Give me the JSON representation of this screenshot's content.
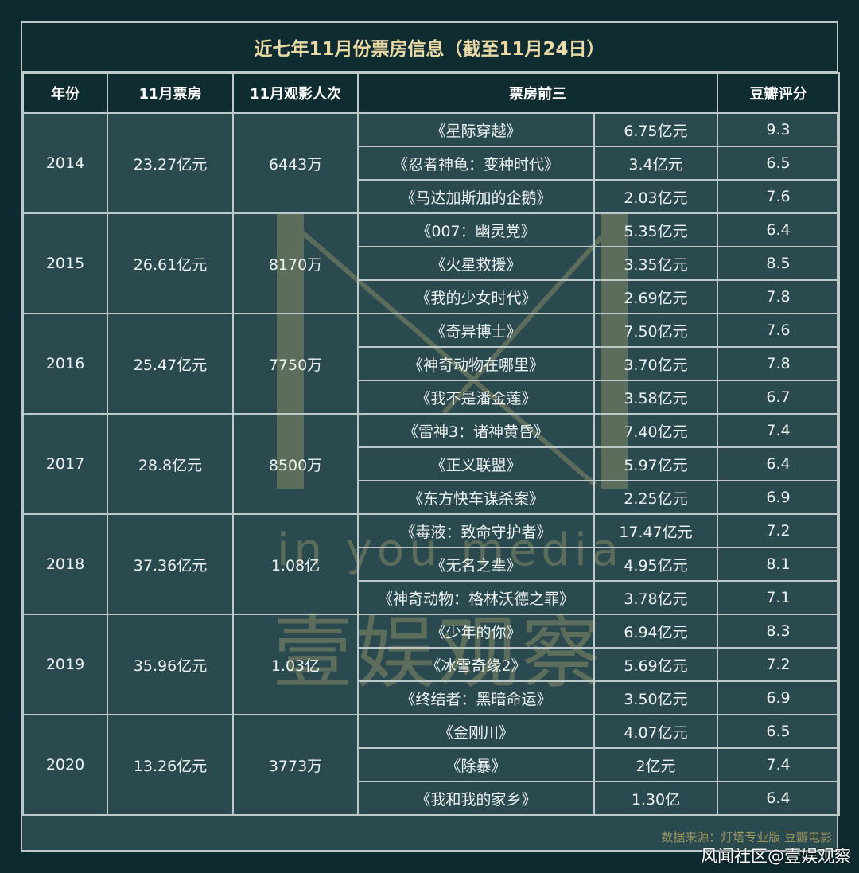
{
  "title": "近七年11月份票房信息（截至11月24日）",
  "headers": {
    "year": "年份",
    "box_office": "11月票房",
    "audience": "11月观影人次",
    "top3": "票房前三",
    "douban": "豆瓣评分"
  },
  "years": [
    {
      "year": "2014",
      "box_office": "23.27亿元",
      "audience": "6443万",
      "films": [
        {
          "name": "《星际穿越》",
          "gross": "6.75亿元",
          "score": "9.3"
        },
        {
          "name": "《忍者神龟：变种时代》",
          "gross": "3.4亿元",
          "score": "6.5"
        },
        {
          "name": "《马达加斯加的企鹅》",
          "gross": "2.03亿元",
          "score": "7.6"
        }
      ]
    },
    {
      "year": "2015",
      "box_office": "26.61亿元",
      "audience": "8170万",
      "films": [
        {
          "name": "《007：幽灵党》",
          "gross": "5.35亿元",
          "score": "6.4"
        },
        {
          "name": "《火星救援》",
          "gross": "3.35亿元",
          "score": "8.5"
        },
        {
          "name": "《我的少女时代》",
          "gross": "2.69亿元",
          "score": "7.8"
        }
      ]
    },
    {
      "year": "2016",
      "box_office": "25.47亿元",
      "audience": "7750万",
      "films": [
        {
          "name": "《奇异博士》",
          "gross": "7.50亿元",
          "score": "7.6"
        },
        {
          "name": "《神奇动物在哪里》",
          "gross": "3.70亿元",
          "score": "7.8"
        },
        {
          "name": "《我不是潘金莲》",
          "gross": "3.58亿元",
          "score": "6.7"
        }
      ]
    },
    {
      "year": "2017",
      "box_office": "28.8亿元",
      "audience": "8500万",
      "films": [
        {
          "name": "《雷神3：诸神黄昏》",
          "gross": "7.40亿元",
          "score": "7.4"
        },
        {
          "name": "《正义联盟》",
          "gross": "5.97亿元",
          "score": "6.4"
        },
        {
          "name": "《东方快车谋杀案》",
          "gross": "2.25亿元",
          "score": "6.9"
        }
      ]
    },
    {
      "year": "2018",
      "box_office": "37.36亿元",
      "audience": "1.08亿",
      "films": [
        {
          "name": "《毒液：致命守护者》",
          "gross": "17.47亿元",
          "score": "7.2"
        },
        {
          "name": "《无名之辈》",
          "gross": "4.95亿元",
          "score": "8.1"
        },
        {
          "name": "《神奇动物：格林沃德之罪》",
          "gross": "3.78亿元",
          "score": "7.1"
        }
      ]
    },
    {
      "year": "2019",
      "box_office": "35.96亿元",
      "audience": "1.03亿",
      "films": [
        {
          "name": "《少年的你》",
          "gross": "6.94亿元",
          "score": "8.3"
        },
        {
          "name": "《冰雪奇缘2》",
          "gross": "5.69亿元",
          "score": "7.2"
        },
        {
          "name": "《终结者：黑暗命运》",
          "gross": "3.50亿元",
          "score": "6.9"
        }
      ]
    },
    {
      "year": "2020",
      "box_office": "13.26亿元",
      "audience": "3773万",
      "films": [
        {
          "name": "《金刚川》",
          "gross": "4.07亿元",
          "score": "6.5"
        },
        {
          "name": "《除暴》",
          "gross": "2亿元",
          "score": "7.4"
        },
        {
          "name": "《我和我的家乡》",
          "gross": "1.30亿",
          "score": "6.4"
        }
      ]
    }
  ],
  "source": "数据来源：灯塔专业版 豆瓣电影",
  "watermark": {
    "en": "in you media",
    "cn": "壹娱观察"
  },
  "credit": "风闻社区@壹娱观察",
  "colors": {
    "background": "#0d2a30",
    "panel": "#2a4a4f",
    "title": "#e9d9a6",
    "source": "#9a9460"
  }
}
